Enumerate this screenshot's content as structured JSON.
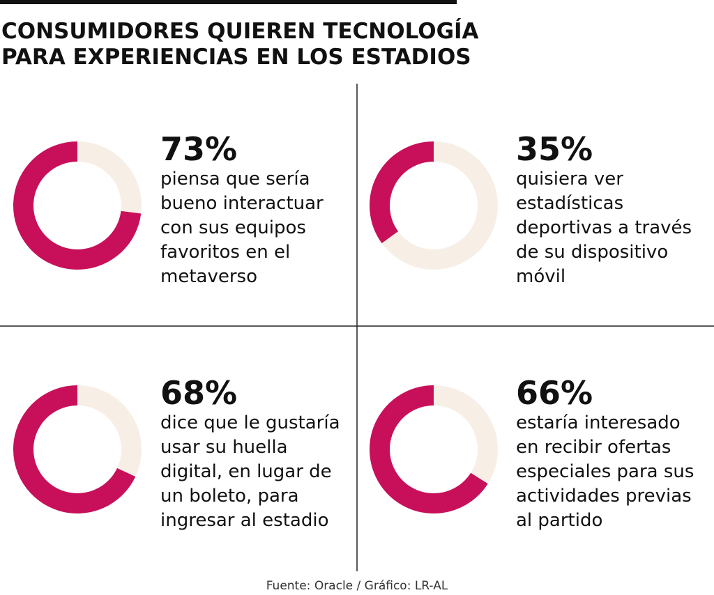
{
  "title": [
    "CONSUMIDORES QUIEREN TECNOLOGÍA",
    "PARA EXPERIENCIAS EN LOS ESTADIOS"
  ],
  "source": "Fuente: Oracle / Gráfico: LR-AL",
  "chart_data": [
    {
      "type": "donut",
      "values": [
        73
      ],
      "value_labels": [
        "73%"
      ],
      "color": "#c8105a",
      "track_color": "#f7efe6",
      "text": [
        "piensa que sería",
        "bueno interactuar",
        "con sus equipos",
        "favoritos en el",
        "metaverso"
      ]
    },
    {
      "type": "donut",
      "values": [
        35
      ],
      "value_labels": [
        "35%"
      ],
      "color": "#c8105a",
      "track_color": "#f7efe6",
      "text": [
        "quisiera ver",
        "estadísticas",
        "deportivas a través",
        "de su dispositivo",
        "móvil"
      ]
    },
    {
      "type": "donut",
      "values": [
        68
      ],
      "value_labels": [
        "68%"
      ],
      "color": "#c8105a",
      "track_color": "#f7efe6",
      "text": [
        "dice que le gustaría",
        "usar su huella",
        "digital, en lugar de",
        "un boleto, para",
        "ingresar al estadio"
      ]
    },
    {
      "type": "donut",
      "values": [
        66
      ],
      "value_labels": [
        "66%"
      ],
      "color": "#c8105a",
      "track_color": "#f7efe6",
      "text": [
        "estaría interesado",
        "en recibir ofertas",
        "especiales para sus",
        "actividades previas",
        "al partido"
      ]
    }
  ]
}
